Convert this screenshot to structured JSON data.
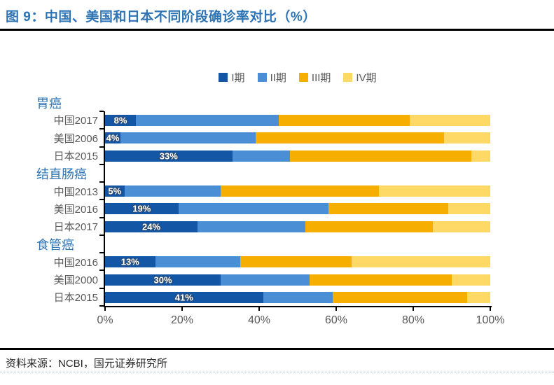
{
  "page": {
    "title": "图 9：中国、美国和日本不同阶段确诊率对比（%）",
    "source": "资料来源：NCBI，国元证券研究所"
  },
  "legend": {
    "items": [
      {
        "label": "I期",
        "color": "#1456A6"
      },
      {
        "label": "II期",
        "color": "#4A8FD6"
      },
      {
        "label": "III期",
        "color": "#F6AF00"
      },
      {
        "label": "IV期",
        "color": "#FFD966"
      }
    ]
  },
  "chart_data": {
    "type": "bar",
    "orientation": "horizontal",
    "stacked": true,
    "title": "中国、美国和日本不同阶段确诊率对比（%）",
    "figure_label": "图 9",
    "unit": "%",
    "series_names": [
      "I期",
      "II期",
      "III期",
      "IV期"
    ],
    "x_axis": {
      "ticks": [
        "0%",
        "20%",
        "40%",
        "60%",
        "80%",
        "100%"
      ],
      "range": [
        0,
        100
      ],
      "grid": false
    },
    "legend_position": "top-center",
    "groups": [
      {
        "name": "胃癌",
        "rows": [
          {
            "label": "中国2017",
            "values": [
              8,
              37,
              34,
              21
            ],
            "data_label": "8%"
          },
          {
            "label": "美国2006",
            "values": [
              4,
              35,
              49,
              12
            ],
            "data_label": "4%"
          },
          {
            "label": "日本2015",
            "values": [
              33,
              15,
              47,
              5
            ],
            "data_label": "33%"
          }
        ]
      },
      {
        "name": "结直肠癌",
        "rows": [
          {
            "label": "中国2013",
            "values": [
              5,
              25,
              41,
              29
            ],
            "data_label": "5%"
          },
          {
            "label": "美国2016",
            "values": [
              19,
              39,
              31,
              11
            ],
            "data_label": "19%"
          },
          {
            "label": "日本2017",
            "values": [
              24,
              28,
              33,
              15
            ],
            "data_label": "24%"
          }
        ]
      },
      {
        "name": "食管癌",
        "rows": [
          {
            "label": "中国2016",
            "values": [
              13,
              22,
              29,
              36
            ],
            "data_label": "13%"
          },
          {
            "label": "美国2000",
            "values": [
              30,
              23,
              37,
              10
            ],
            "data_label": "30%"
          },
          {
            "label": "日本2015",
            "values": [
              41,
              18,
              35,
              6
            ],
            "data_label": "41%"
          }
        ]
      }
    ]
  },
  "colors": {
    "title_blue": "#2E74B5",
    "axis_text": "#595959",
    "axis_line": "#000000"
  }
}
